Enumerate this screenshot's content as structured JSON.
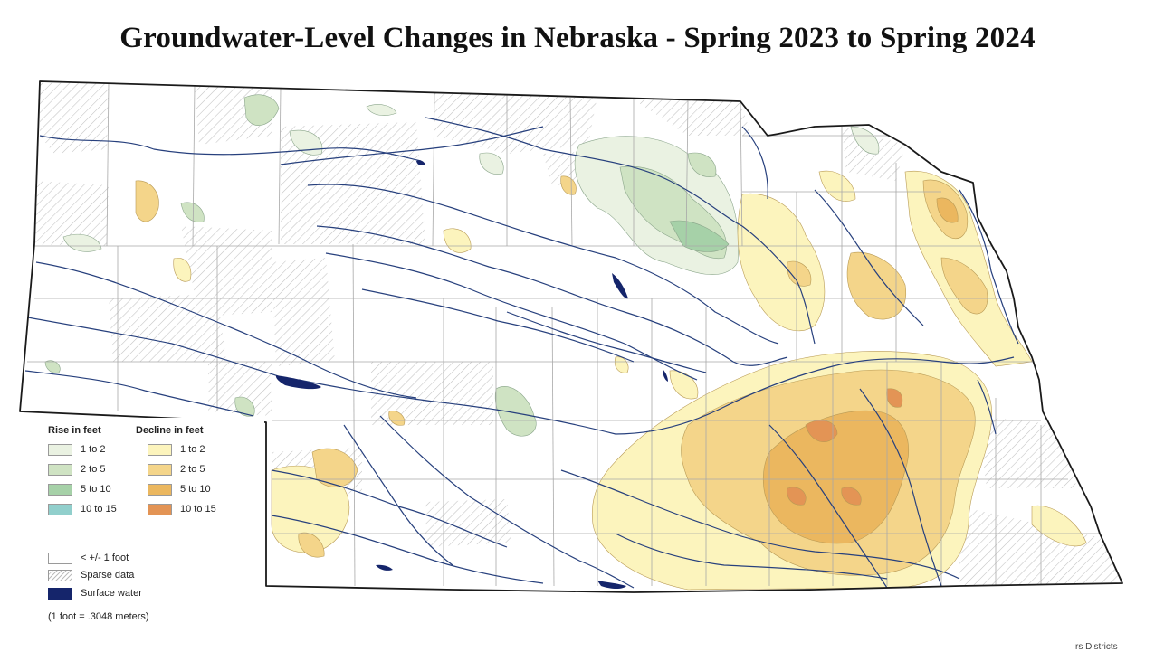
{
  "title": "Groundwater-Level Changes in Nebraska - Spring 2023 to Spring 2024",
  "legend": {
    "rise_heading": "Rise in feet",
    "decline_heading": "Decline in feet",
    "rise": [
      {
        "label": "1 to 2",
        "color": "#eaf2e2"
      },
      {
        "label": "2 to 5",
        "color": "#cfe3c3"
      },
      {
        "label": "5 to 10",
        "color": "#a6d1a8"
      },
      {
        "label": "10 to 15",
        "color": "#91cfcc"
      }
    ],
    "decline": [
      {
        "label": "1 to 2",
        "color": "#fcf4bd"
      },
      {
        "label": "2 to 5",
        "color": "#f4d58a"
      },
      {
        "label": "5 to 10",
        "color": "#ebb75f"
      },
      {
        "label": "10 to 15",
        "color": "#e39455"
      }
    ],
    "other": [
      {
        "label": "< +/- 1 foot",
        "color": "#ffffff",
        "key": "none"
      },
      {
        "label": "Sparse data",
        "color": "#bdbdbd",
        "key": "sparse"
      },
      {
        "label": "Surface water",
        "color": "#15256b",
        "key": "water"
      }
    ]
  },
  "note": "(1 foot = .3048 meters)",
  "credit": "rs Districts",
  "colors": {
    "state_outline": "#1a1a1a",
    "county_lines": "#a8a8a8",
    "river": "#27407d",
    "surface_water": "#15256b"
  }
}
